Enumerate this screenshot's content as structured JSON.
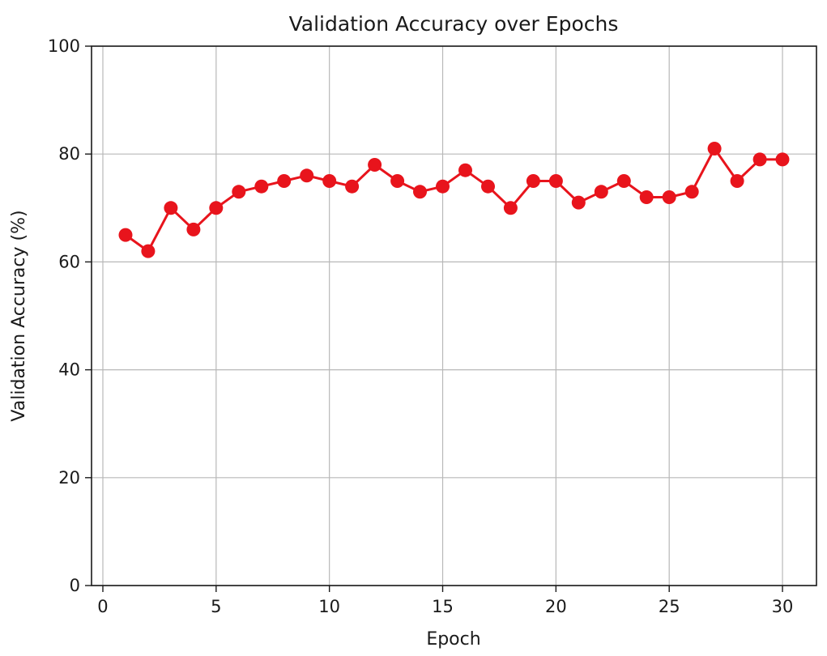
{
  "chart_data": {
    "type": "line",
    "title": "Validation Accuracy over Epochs",
    "xlabel": "Epoch",
    "ylabel": "Validation Accuracy (%)",
    "xlim": [
      -0.5,
      31.5
    ],
    "ylim": [
      0,
      100
    ],
    "x_ticks": [
      0,
      5,
      10,
      15,
      20,
      25,
      30
    ],
    "y_ticks": [
      0,
      20,
      40,
      60,
      80,
      100
    ],
    "grid": true,
    "series": [
      {
        "color": "#e8141c",
        "marker": "circle",
        "x": [
          1,
          2,
          3,
          4,
          5,
          6,
          7,
          8,
          9,
          10,
          11,
          12,
          13,
          14,
          15,
          16,
          17,
          18,
          19,
          20,
          21,
          22,
          23,
          24,
          25,
          26,
          27,
          28,
          29,
          30
        ],
        "values": [
          65,
          62,
          70,
          66,
          70,
          73,
          74,
          75,
          76,
          75,
          74,
          78,
          75,
          73,
          74,
          77,
          74,
          70,
          75,
          75,
          71,
          73,
          75,
          72,
          72,
          73,
          81,
          75,
          79,
          79
        ]
      }
    ]
  }
}
